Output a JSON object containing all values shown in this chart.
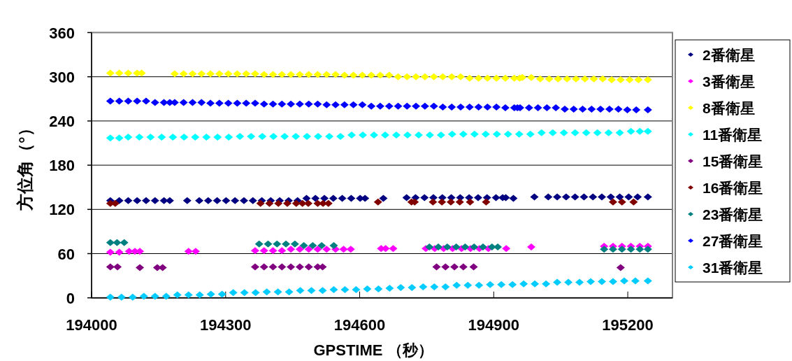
{
  "chart_data": {
    "type": "scatter",
    "xlabel": "GPSTIME （秒）",
    "ylabel": "方位角（°）",
    "xlim": [
      194000,
      195300
    ],
    "ylim": [
      0,
      360
    ],
    "xticks": [
      194000,
      194300,
      194600,
      194900,
      195200
    ],
    "yticks": [
      0,
      60,
      120,
      180,
      240,
      300,
      360
    ],
    "grid": "y",
    "legend": "right",
    "marker": "diamond",
    "series": [
      {
        "name": "2番衛星",
        "color": "#000080",
        "x": [
          194042,
          194062,
          194082,
          194102,
          194122,
          194142,
          194162,
          194175,
          194214,
          194241,
          194261,
          194281,
          194301,
          194321,
          194341,
          194361,
          194381,
          194401,
          194421,
          194441,
          194461,
          194481,
          194501,
          194521,
          194541,
          194561,
          194581,
          194601,
          194612,
          194653,
          194705,
          194725,
          194745,
          194765,
          194785,
          194805,
          194825,
          194845,
          194865,
          194885,
          194905,
          194920,
          194927,
          194944,
          194991,
          195022,
          195042,
          195062,
          195082,
          195102,
          195122,
          195142,
          195162,
          195182,
          195202,
          195222,
          195245
        ],
        "values": [
          132,
          132,
          132,
          132,
          132,
          132,
          132,
          132,
          132,
          132,
          132,
          132,
          132,
          132,
          132,
          132,
          132,
          132,
          132,
          132,
          132,
          135,
          135,
          135,
          135,
          135,
          135,
          135,
          135,
          135,
          136,
          136,
          136,
          136,
          136,
          136,
          136,
          136,
          136,
          136,
          136,
          136,
          136,
          135,
          137,
          137,
          137,
          137,
          137,
          137,
          137,
          137,
          137,
          137,
          137,
          137,
          137
        ]
      },
      {
        "name": "3番衛星",
        "color": "#ff00ff",
        "x": [
          194042,
          194062,
          194084,
          194097,
          194108,
          194217,
          194233,
          194366,
          194386,
          194406,
          194426,
          194446,
          194466,
          194486,
          194506,
          194526,
          194546,
          194564,
          194580,
          194648,
          194658,
          194675,
          194748,
          194768,
          194788,
          194808,
          194828,
          194848,
          194868,
          194888,
          194928,
          194984,
          195147,
          195167,
          195187,
          195207,
          195227,
          195245
        ],
        "values": [
          62,
          62,
          63,
          63,
          63,
          63,
          63,
          64,
          64,
          64,
          64,
          66,
          66,
          66,
          66,
          66,
          66,
          66,
          66,
          67,
          67,
          67,
          67,
          67,
          67,
          67,
          67,
          67,
          67,
          67,
          67,
          69,
          70,
          70,
          70,
          70,
          70,
          70
        ]
      },
      {
        "name": "8番衛星",
        "color": "#ffff00",
        "x": [
          194042,
          194062,
          194082,
          194102,
          194112,
          194186,
          194206,
          194226,
          194246,
          194266,
          194286,
          194306,
          194326,
          194346,
          194366,
          194386,
          194406,
          194426,
          194446,
          194466,
          194486,
          194506,
          194526,
          194546,
          194566,
          194586,
          194606,
          194626,
          194646,
          194666,
          194686,
          194706,
          194726,
          194746,
          194766,
          194786,
          194806,
          194826,
          194846,
          194866,
          194886,
          194906,
          194926,
          194946,
          194958,
          194964,
          194984,
          195004,
          195024,
          195044,
          195064,
          195084,
          195104,
          195124,
          195144,
          195164,
          195184,
          195204,
          195224,
          195245
        ],
        "values": [
          305,
          305,
          305,
          305,
          305,
          304,
          304,
          304,
          304,
          304,
          304,
          304,
          304,
          304,
          304,
          303,
          303,
          303,
          303,
          303,
          303,
          303,
          303,
          303,
          302,
          302,
          302,
          302,
          302,
          302,
          300,
          300,
          300,
          300,
          300,
          300,
          300,
          300,
          298,
          298,
          298,
          298,
          298,
          298,
          298,
          299,
          299,
          297,
          297,
          297,
          297,
          297,
          297,
          297,
          297,
          296,
          296,
          296,
          296,
          296
        ]
      },
      {
        "name": "11番衛星",
        "color": "#00ffff",
        "x": [
          194042,
          194062,
          194082,
          194107,
          194132,
          194157,
          194182,
          194207,
          194232,
          194257,
          194282,
          194307,
          194332,
          194357,
          194382,
          194407,
          194432,
          194457,
          194482,
          194507,
          194532,
          194557,
          194582,
          194607,
          194632,
          194657,
          194682,
          194707,
          194732,
          194757,
          194782,
          194807,
          194832,
          194857,
          194882,
          194907,
          194932,
          194957,
          194982,
          195007,
          195032,
          195057,
          195082,
          195107,
          195132,
          195157,
          195182,
          195207,
          195227,
          195245
        ],
        "values": [
          217,
          217,
          218,
          218,
          218,
          218,
          218,
          218,
          218,
          218,
          218,
          218,
          219,
          219,
          219,
          219,
          219,
          219,
          219,
          219,
          219,
          219,
          221,
          221,
          221,
          221,
          221,
          221,
          221,
          221,
          221,
          222,
          222,
          222,
          222,
          222,
          222,
          222,
          222,
          224,
          224,
          224,
          224,
          224,
          224,
          224,
          224,
          226,
          226,
          226
        ]
      },
      {
        "name": "15番衛星",
        "color": "#800080",
        "x": [
          194042,
          194058,
          194108,
          194147,
          194159,
          194366,
          194386,
          194406,
          194426,
          194446,
          194466,
          194486,
          194506,
          194517,
          194772,
          194792,
          194812,
          194832,
          194855,
          195184
        ],
        "values": [
          42,
          42,
          41,
          41,
          41,
          42,
          42,
          42,
          42,
          42,
          42,
          42,
          42,
          42,
          42,
          42,
          42,
          42,
          42,
          41
        ]
      },
      {
        "name": "16番衛星",
        "color": "#800000",
        "x": [
          194042,
          194053,
          194378,
          194398,
          194418,
          194438,
          194458,
          194472,
          194485,
          194506,
          194518,
          194530,
          194641,
          194716,
          194723,
          194764,
          194784,
          194804,
          194824,
          194847,
          194883,
          195167,
          195187,
          195213
        ],
        "values": [
          128,
          128,
          128,
          128,
          128,
          128,
          128,
          128,
          128,
          128,
          128,
          128,
          130,
          130,
          130,
          130,
          130,
          130,
          130,
          130,
          130,
          130,
          130,
          130
        ]
      },
      {
        "name": "23番衛星",
        "color": "#008080",
        "x": [
          194042,
          194057,
          194073,
          194375,
          194395,
          194415,
          194435,
          194455,
          194475,
          194495,
          194515,
          194542,
          194756,
          194776,
          194796,
          194816,
          194836,
          194856,
          194876,
          194896,
          194909,
          195147,
          195167,
          195187,
          195207,
          195227,
          195245
        ],
        "values": [
          75,
          75,
          75,
          73,
          73,
          73,
          73,
          73,
          71,
          71,
          71,
          71,
          69,
          69,
          69,
          69,
          69,
          69,
          69,
          69,
          69,
          66,
          66,
          66,
          66,
          66,
          66
        ]
      },
      {
        "name": "27番衛星",
        "color": "#0000ff",
        "x": [
          194042,
          194062,
          194082,
          194102,
          194122,
          194142,
          194162,
          194175,
          194186,
          194206,
          194226,
          194246,
          194266,
          194286,
          194306,
          194326,
          194346,
          194366,
          194386,
          194406,
          194426,
          194446,
          194466,
          194486,
          194506,
          194526,
          194546,
          194566,
          194586,
          194606,
          194626,
          194646,
          194666,
          194686,
          194706,
          194726,
          194746,
          194766,
          194786,
          194806,
          194826,
          194846,
          194866,
          194886,
          194906,
          194926,
          194946,
          194953,
          194959,
          194979,
          194999,
          195019,
          195039,
          195059,
          195079,
          195099,
          195119,
          195139,
          195159,
          195179,
          195199,
          195219,
          195245
        ],
        "values": [
          267,
          267,
          267,
          267,
          267,
          265,
          265,
          265,
          265,
          265,
          265,
          265,
          264,
          264,
          264,
          264,
          264,
          264,
          263,
          263,
          263,
          263,
          263,
          263,
          263,
          262,
          262,
          262,
          262,
          262,
          260,
          260,
          260,
          260,
          260,
          260,
          260,
          260,
          259,
          259,
          259,
          259,
          259,
          259,
          259,
          258,
          258,
          258,
          258,
          258,
          258,
          258,
          258,
          256,
          256,
          256,
          256,
          256,
          256,
          256,
          255,
          255,
          255
        ]
      },
      {
        "name": "31番衛星",
        "color": "#00ccff",
        "x": [
          194042,
          194067,
          194092,
          194117,
          194142,
          194167,
          194192,
          194217,
          194242,
          194267,
          194292,
          194317,
          194342,
          194367,
          194392,
          194417,
          194442,
          194467,
          194492,
          194517,
          194542,
          194567,
          194592,
          194617,
          194642,
          194667,
          194692,
          194717,
          194742,
          194767,
          194792,
          194817,
          194842,
          194867,
          194892,
          194917,
          194942,
          194967,
          194992,
          195017,
          195042,
          195067,
          195092,
          195117,
          195142,
          195167,
          195192,
          195217,
          195245
        ],
        "values": [
          1,
          1,
          1,
          2,
          2,
          2,
          4,
          4,
          4,
          5,
          5,
          7,
          7,
          7,
          8,
          8,
          8,
          10,
          10,
          10,
          11,
          11,
          11,
          12,
          12,
          13,
          14,
          14,
          15,
          15,
          15,
          17,
          17,
          17,
          18,
          18,
          18,
          19,
          19,
          19,
          21,
          21,
          21,
          22,
          22,
          22,
          23,
          23,
          23
        ]
      }
    ]
  }
}
